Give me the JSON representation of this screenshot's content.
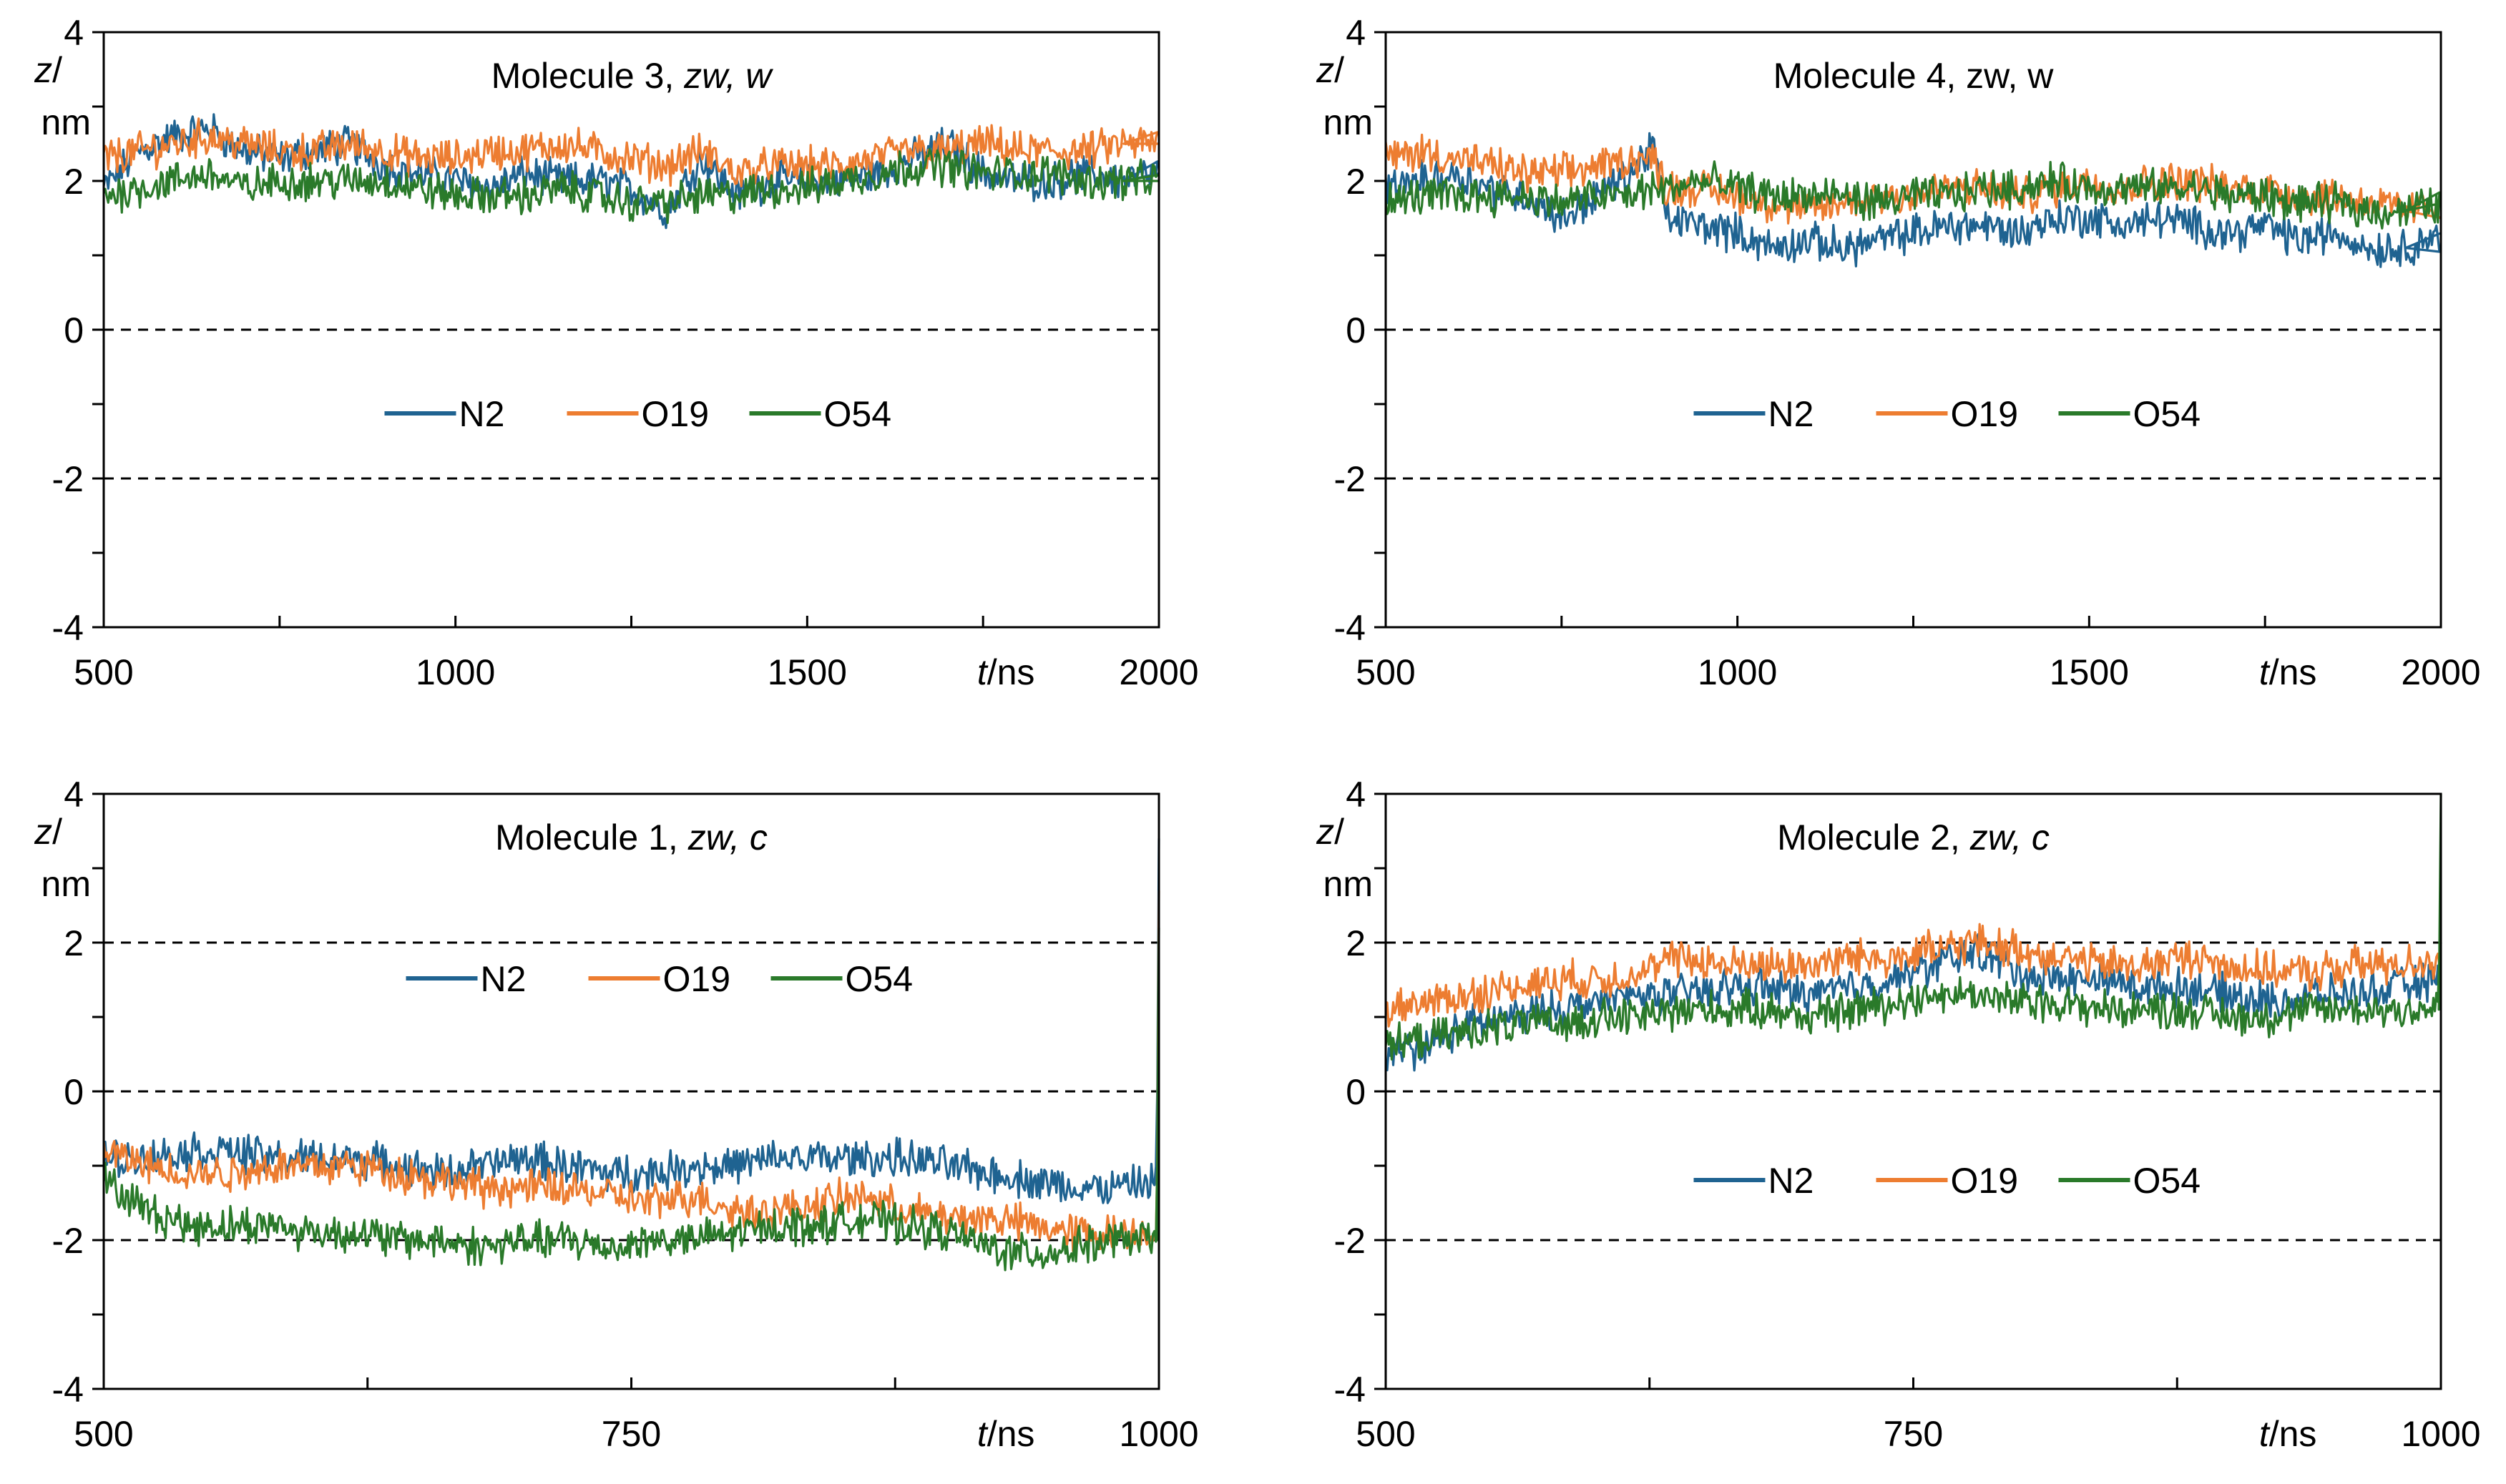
{
  "colors": {
    "N2": "#1f6391",
    "O19": "#ed7d31",
    "O54": "#2a7a2a",
    "axis": "#000000",
    "refline": "#000000"
  },
  "chart_data": [
    {
      "type": "line",
      "title": {
        "prefix": "Molecule 3, ",
        "italic": "zw, w"
      },
      "ylabel": {
        "italic": "z",
        "rest": "/ nm"
      },
      "xlabel": {
        "italic": "t",
        "rest": "/ns"
      },
      "xlim": [
        500,
        2000
      ],
      "ylim": [
        -4,
        4
      ],
      "xticks": [
        500,
        1000,
        1500,
        2000
      ],
      "xtick_labels": [
        "500",
        "1000",
        "1500",
        "2000"
      ],
      "yticks": [
        4,
        2,
        0,
        -2,
        -4
      ],
      "ytick_labels": [
        "4",
        "2",
        "0",
        "-2",
        "-4"
      ],
      "reference_lines": [
        0,
        -2
      ],
      "legend_position": "center",
      "series": [
        {
          "name": "N2",
          "x": [
            500,
            550,
            600,
            650,
            700,
            750,
            800,
            850,
            900,
            950,
            1000,
            1050,
            1100,
            1150,
            1200,
            1250,
            1300,
            1350,
            1400,
            1450,
            1500,
            1550,
            1600,
            1650,
            1700,
            1750,
            1800,
            1850,
            1900,
            1950,
            2000
          ],
          "y": [
            1.9,
            2.4,
            2.6,
            2.7,
            2.4,
            2.3,
            2.4,
            2.5,
            2.2,
            2.1,
            2.0,
            1.9,
            2.1,
            2.0,
            2.0,
            1.9,
            1.6,
            2.3,
            1.8,
            2.0,
            2.0,
            2.0,
            2.1,
            2.3,
            2.5,
            2.1,
            2.0,
            2.0,
            2.1,
            2.0,
            2.1
          ]
        },
        {
          "name": "O19",
          "x": [
            500,
            550,
            600,
            650,
            700,
            750,
            800,
            850,
            900,
            950,
            1000,
            1050,
            1100,
            1150,
            1200,
            1250,
            1300,
            1350,
            1400,
            1450,
            1500,
            1550,
            1600,
            1650,
            1700,
            1750,
            1800,
            1850,
            1900,
            1950,
            2000
          ],
          "y": [
            2.3,
            2.4,
            2.5,
            2.6,
            2.5,
            2.4,
            2.4,
            2.5,
            2.4,
            2.3,
            2.3,
            2.4,
            2.4,
            2.5,
            2.4,
            2.3,
            2.2,
            2.4,
            2.1,
            2.2,
            2.2,
            2.2,
            2.3,
            2.4,
            2.4,
            2.5,
            2.4,
            2.4,
            2.4,
            2.5,
            2.5
          ]
        },
        {
          "name": "O54",
          "x": [
            500,
            550,
            600,
            650,
            700,
            750,
            800,
            850,
            900,
            950,
            1000,
            1050,
            1100,
            1150,
            1200,
            1250,
            1300,
            1350,
            1400,
            1450,
            1500,
            1550,
            1600,
            1650,
            1700,
            1750,
            1800,
            1850,
            1900,
            1950,
            2000
          ],
          "y": [
            1.8,
            1.9,
            2.0,
            2.1,
            1.9,
            2.0,
            2.0,
            2.0,
            2.0,
            1.9,
            1.8,
            1.8,
            1.8,
            1.9,
            1.8,
            1.7,
            1.7,
            1.8,
            1.8,
            1.9,
            1.9,
            2.0,
            2.1,
            2.2,
            2.2,
            2.1,
            2.1,
            2.1,
            2.0,
            2.0,
            2.0
          ]
        }
      ]
    },
    {
      "type": "line",
      "title": {
        "prefix": "Molecule 4, zw, w",
        "italic": ""
      },
      "ylabel": {
        "italic": "z",
        "rest": "/ nm"
      },
      "xlabel": {
        "italic": "t",
        "rest": "/ns"
      },
      "xlim": [
        500,
        2000
      ],
      "ylim": [
        -4,
        4
      ],
      "xticks": [
        500,
        1000,
        1500,
        2000
      ],
      "xtick_labels": [
        "500",
        "1000",
        "1500",
        "2000"
      ],
      "yticks": [
        4,
        2,
        0,
        -2,
        -4
      ],
      "ytick_labels": [
        "4",
        "2",
        "0",
        "-2",
        "-4"
      ],
      "reference_lines": [
        0,
        -2
      ],
      "legend_position": "center",
      "series": [
        {
          "name": "N2",
          "x": [
            500,
            550,
            600,
            650,
            700,
            750,
            800,
            850,
            880,
            900,
            950,
            1000,
            1050,
            1100,
            1150,
            1200,
            1250,
            1300,
            1350,
            1400,
            1450,
            1500,
            1550,
            1600,
            1650,
            1700,
            1750,
            1800,
            1850,
            1900,
            1950,
            2000
          ],
          "y": [
            1.9,
            2.0,
            2.1,
            1.9,
            1.8,
            1.5,
            1.8,
            2.1,
            2.5,
            1.5,
            1.4,
            1.3,
            1.1,
            1.2,
            1.1,
            1.2,
            1.3,
            1.4,
            1.4,
            1.3,
            1.5,
            1.5,
            1.4,
            1.5,
            1.4,
            1.3,
            1.4,
            1.2,
            1.3,
            1.1,
            1.1,
            1.3
          ]
        },
        {
          "name": "O19",
          "x": [
            500,
            550,
            600,
            650,
            700,
            750,
            800,
            850,
            880,
            900,
            950,
            1000,
            1050,
            1100,
            1150,
            1200,
            1250,
            1300,
            1350,
            1400,
            1450,
            1500,
            1550,
            1600,
            1650,
            1700,
            1750,
            1800,
            1850,
            1900,
            1950,
            2000
          ],
          "y": [
            2.3,
            2.4,
            2.3,
            2.2,
            2.1,
            2.1,
            2.2,
            2.3,
            2.3,
            1.9,
            1.9,
            1.8,
            1.7,
            1.6,
            1.7,
            1.8,
            1.8,
            1.9,
            1.9,
            1.8,
            1.9,
            2.0,
            1.9,
            2.0,
            2.0,
            1.9,
            1.9,
            1.8,
            1.8,
            1.7,
            1.6,
            1.7
          ]
        },
        {
          "name": "O54",
          "x": [
            500,
            550,
            600,
            650,
            700,
            750,
            800,
            850,
            880,
            900,
            950,
            1000,
            1050,
            1100,
            1150,
            1200,
            1250,
            1300,
            1350,
            1400,
            1450,
            1500,
            1550,
            1600,
            1650,
            1700,
            1750,
            1800,
            1850,
            1900,
            1950,
            2000
          ],
          "y": [
            1.7,
            1.8,
            1.8,
            1.8,
            1.8,
            1.7,
            1.8,
            1.8,
            1.9,
            1.9,
            2.0,
            1.9,
            1.8,
            1.8,
            1.8,
            1.7,
            1.8,
            1.8,
            1.9,
            1.9,
            2.0,
            1.9,
            1.9,
            1.9,
            1.9,
            1.8,
            1.8,
            1.7,
            1.7,
            1.6,
            1.6,
            1.7
          ]
        }
      ]
    },
    {
      "type": "line",
      "title": {
        "prefix": "Molecule 1, ",
        "italic": "zw, c"
      },
      "ylabel": {
        "italic": "z",
        "rest": "/ nm"
      },
      "xlabel": {
        "italic": "t",
        "rest": "/ns"
      },
      "xlim": [
        500,
        1000
      ],
      "ylim": [
        -4,
        4
      ],
      "xticks": [
        500,
        750,
        1000
      ],
      "xtick_labels": [
        "500",
        "750",
        "1000"
      ],
      "yticks": [
        4,
        2,
        0,
        -2,
        -4
      ],
      "ytick_labels": [
        "4",
        "2",
        "0",
        "-2",
        "-4"
      ],
      "reference_lines": [
        2,
        0,
        -2
      ],
      "legend_position": "upper center",
      "series": [
        {
          "name": "N2",
          "x": [
            500,
            520,
            540,
            560,
            580,
            600,
            620,
            640,
            660,
            680,
            700,
            720,
            740,
            760,
            780,
            800,
            820,
            840,
            860,
            880,
            900,
            920,
            940,
            960,
            980,
            999,
            1000
          ],
          "y": [
            -0.9,
            -0.9,
            -0.8,
            -0.8,
            -0.9,
            -0.9,
            -0.9,
            -1.0,
            -1.1,
            -1.0,
            -0.9,
            -1.0,
            -1.1,
            -1.1,
            -1.0,
            -1.0,
            -0.9,
            -0.9,
            -0.9,
            -0.9,
            -1.0,
            -1.1,
            -1.2,
            -1.3,
            -1.3,
            -1.2,
            3.4
          ]
        },
        {
          "name": "O19",
          "x": [
            500,
            520,
            540,
            560,
            580,
            600,
            620,
            640,
            660,
            680,
            700,
            720,
            740,
            760,
            780,
            800,
            820,
            840,
            860,
            880,
            900,
            920,
            940,
            960,
            980,
            999,
            1000
          ],
          "y": [
            -0.8,
            -1.0,
            -1.1,
            -1.1,
            -1.0,
            -1.0,
            -1.0,
            -1.1,
            -1.2,
            -1.3,
            -1.3,
            -1.3,
            -1.4,
            -1.5,
            -1.4,
            -1.6,
            -1.6,
            -1.5,
            -1.4,
            -1.6,
            -1.7,
            -1.7,
            -1.8,
            -1.9,
            -1.9,
            -1.9,
            2.7
          ]
        },
        {
          "name": "O54",
          "x": [
            500,
            520,
            540,
            560,
            580,
            600,
            620,
            640,
            660,
            680,
            700,
            720,
            740,
            760,
            780,
            800,
            820,
            840,
            860,
            880,
            900,
            920,
            940,
            960,
            980,
            999,
            1000
          ],
          "y": [
            -1.2,
            -1.6,
            -1.8,
            -1.8,
            -1.8,
            -1.9,
            -1.9,
            -2.0,
            -2.0,
            -2.1,
            -2.0,
            -2.0,
            -2.1,
            -2.0,
            -2.0,
            -1.9,
            -1.8,
            -1.8,
            -1.7,
            -1.8,
            -1.9,
            -2.1,
            -2.2,
            -2.1,
            -2.0,
            -2.0,
            2.2
          ]
        }
      ]
    },
    {
      "type": "line",
      "title": {
        "prefix": "Molecule 2, ",
        "italic": "zw, c"
      },
      "ylabel": {
        "italic": "z",
        "rest": "/ nm"
      },
      "xlabel": {
        "italic": "t",
        "rest": "/ns"
      },
      "xlim": [
        500,
        1000
      ],
      "ylim": [
        -4,
        4
      ],
      "xticks": [
        500,
        750,
        1000
      ],
      "xtick_labels": [
        "500",
        "750",
        "1000"
      ],
      "yticks": [
        4,
        2,
        0,
        -2,
        -4
      ],
      "ytick_labels": [
        "4",
        "2",
        "0",
        "-2",
        "-4"
      ],
      "reference_lines": [
        2,
        0,
        -2
      ],
      "legend_position": "center",
      "series": [
        {
          "name": "N2",
          "x": [
            500,
            520,
            540,
            560,
            580,
            600,
            620,
            640,
            660,
            680,
            700,
            720,
            740,
            760,
            780,
            800,
            820,
            840,
            860,
            880,
            900,
            920,
            940,
            960,
            980,
            999,
            1000
          ],
          "y": [
            0.5,
            0.6,
            0.9,
            1.0,
            1.1,
            1.2,
            1.3,
            1.3,
            1.4,
            1.4,
            1.3,
            1.4,
            1.5,
            1.7,
            1.9,
            1.6,
            1.5,
            1.5,
            1.4,
            1.4,
            1.3,
            1.2,
            1.3,
            1.3,
            1.4,
            1.5,
            2.0
          ]
        },
        {
          "name": "O19",
          "x": [
            500,
            520,
            540,
            560,
            580,
            600,
            620,
            640,
            660,
            680,
            700,
            720,
            740,
            760,
            780,
            800,
            820,
            840,
            860,
            880,
            900,
            920,
            940,
            960,
            980,
            999,
            1000
          ],
          "y": [
            1.1,
            1.2,
            1.3,
            1.4,
            1.5,
            1.5,
            1.6,
            1.8,
            1.7,
            1.7,
            1.7,
            1.8,
            1.8,
            1.9,
            2.0,
            1.9,
            1.8,
            1.7,
            1.7,
            1.8,
            1.7,
            1.6,
            1.6,
            1.7,
            1.7,
            1.8,
            2.0
          ]
        },
        {
          "name": "O54",
          "x": [
            500,
            520,
            540,
            560,
            580,
            600,
            620,
            640,
            660,
            680,
            700,
            720,
            740,
            760,
            780,
            800,
            820,
            840,
            860,
            880,
            900,
            920,
            940,
            960,
            980,
            999,
            1000
          ],
          "y": [
            0.6,
            0.7,
            0.8,
            0.9,
            0.9,
            1.0,
            1.0,
            1.1,
            1.1,
            1.1,
            1.0,
            1.1,
            1.2,
            1.3,
            1.3,
            1.2,
            1.2,
            1.1,
            1.1,
            1.1,
            1.0,
            1.0,
            1.1,
            1.1,
            1.1,
            1.1,
            4.0
          ]
        }
      ]
    }
  ]
}
